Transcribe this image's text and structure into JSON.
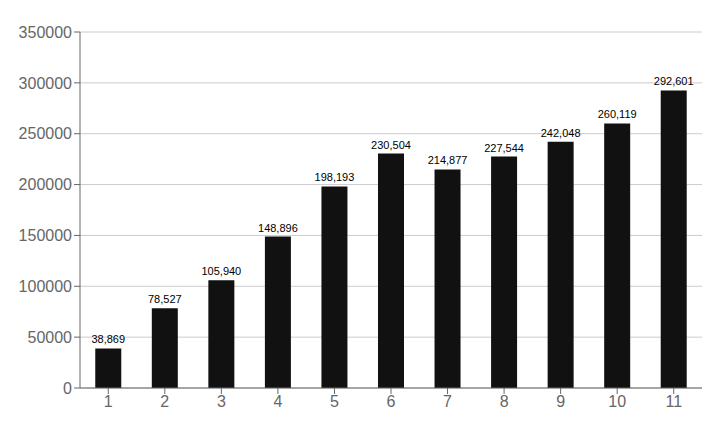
{
  "chart_data": {
    "type": "bar",
    "categories": [
      1,
      2,
      3,
      4,
      5,
      6,
      7,
      8,
      9,
      10,
      11
    ],
    "values": [
      38869,
      78527,
      105940,
      148896,
      198193,
      230504,
      214877,
      227544,
      242048,
      260119,
      292601
    ],
    "value_labels": [
      "38,869",
      "78,527",
      "105,940",
      "148,896",
      "198,193",
      "230,504",
      "214,877",
      "227,544",
      "242,048",
      "260,119",
      "292,601"
    ],
    "data_labels": true,
    "color": "#111111",
    "ylim": [
      0,
      350000
    ],
    "yticks": [
      0,
      50000,
      100000,
      150000,
      200000,
      250000,
      300000,
      350000
    ],
    "grid": true
  }
}
